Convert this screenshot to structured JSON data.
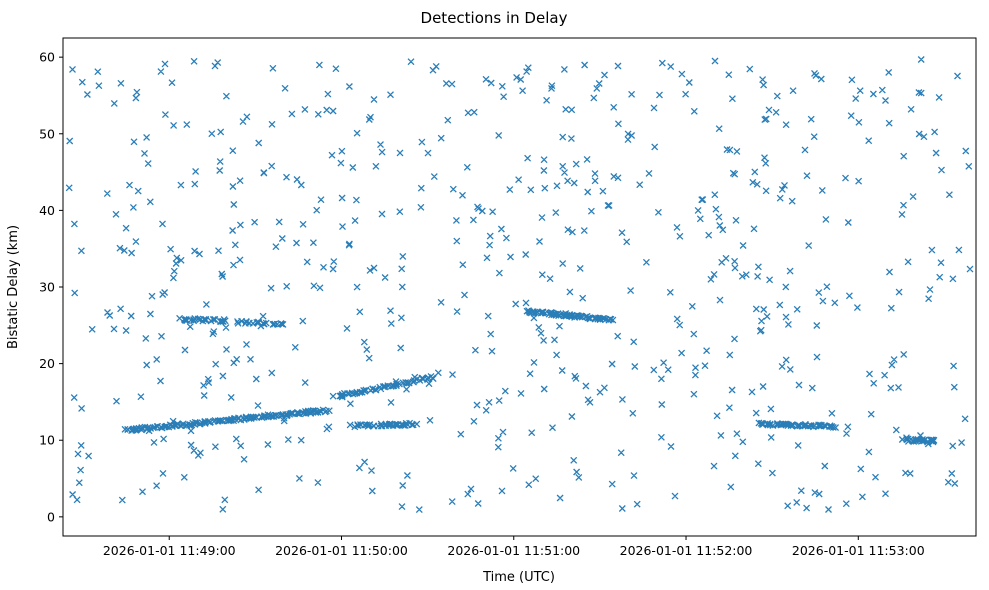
{
  "chart_data": {
    "type": "scatter",
    "title": "Detections in Delay",
    "xlabel": "Time (UTC)",
    "ylabel": "Bistatic Delay (km)",
    "marker": "x",
    "marker_color": "#1f77b4",
    "grid": false,
    "legend": null,
    "x_axis": {
      "unit": "seconds since 2026-01-01 11:48:00 UTC",
      "range": [
        23,
        341
      ],
      "ticks": [
        {
          "t": 60,
          "label": "2026-01-01 11:49:00"
        },
        {
          "t": 120,
          "label": "2026-01-01 11:50:00"
        },
        {
          "t": 180,
          "label": "2026-01-01 11:51:00"
        },
        {
          "t": 240,
          "label": "2026-01-01 11:52:00"
        },
        {
          "t": 300,
          "label": "2026-01-01 11:53:00"
        }
      ]
    },
    "y_axis": {
      "range": [
        -2.5,
        62.5
      ],
      "ticks": [
        0,
        10,
        20,
        30,
        40,
        50,
        60
      ]
    },
    "tracks": [
      {
        "t_start": 45,
        "t_end": 115,
        "y_start": 11.3,
        "y_end": 13.9,
        "n": 150
      },
      {
        "t_start": 118,
        "t_end": 152,
        "y_start": 15.7,
        "y_end": 18.2,
        "n": 55
      },
      {
        "t_start": 124,
        "t_end": 146,
        "y_start": 11.9,
        "y_end": 12.1,
        "n": 40
      },
      {
        "t_start": 64,
        "t_end": 80,
        "y_start": 25.8,
        "y_end": 25.6,
        "n": 28
      },
      {
        "t_start": 84,
        "t_end": 100,
        "y_start": 25.4,
        "y_end": 25.2,
        "n": 22
      },
      {
        "t_start": 185,
        "t_end": 214,
        "y_start": 26.8,
        "y_end": 25.7,
        "n": 70
      },
      {
        "t_start": 266,
        "t_end": 292,
        "y_start": 12.1,
        "y_end": 11.8,
        "n": 55
      },
      {
        "t_start": 316,
        "t_end": 327,
        "y_start": 10.0,
        "y_end": 9.9,
        "n": 26
      }
    ],
    "clutter": {
      "count": 640,
      "seed": 7,
      "t_range": [
        25,
        339
      ],
      "y_range": [
        0.8,
        59.8
      ],
      "distribution": "uniform"
    }
  }
}
